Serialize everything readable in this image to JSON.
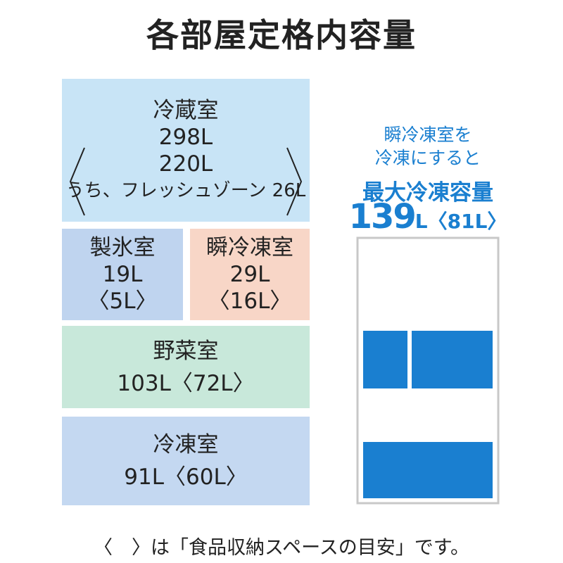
{
  "title": "各部屋定格内容量",
  "fridge": {
    "name": "冷蔵室",
    "total": "298L",
    "food": "220L",
    "fresh_zone": "うち、フレッシュゾーン 26L"
  },
  "ice": {
    "name": "製氷室",
    "total": "19L",
    "food": "〈5L〉"
  },
  "quick_freeze": {
    "name": "瞬冷凍室",
    "total": "29L",
    "food": "〈16L〉"
  },
  "vegetable": {
    "name": "野菜室",
    "total": "103L〈72L〉"
  },
  "freezer": {
    "name": "冷凍室",
    "total": "91L〈60L〉"
  },
  "max_freeze": {
    "line1": "瞬冷凍室を",
    "line2": "冷凍にすると",
    "heading": "最大冷凍容量",
    "value": "139",
    "unit": "L",
    "food": "〈81L〉"
  },
  "footnote": "〈　〉は「食品収納スペースの目安」です。"
}
